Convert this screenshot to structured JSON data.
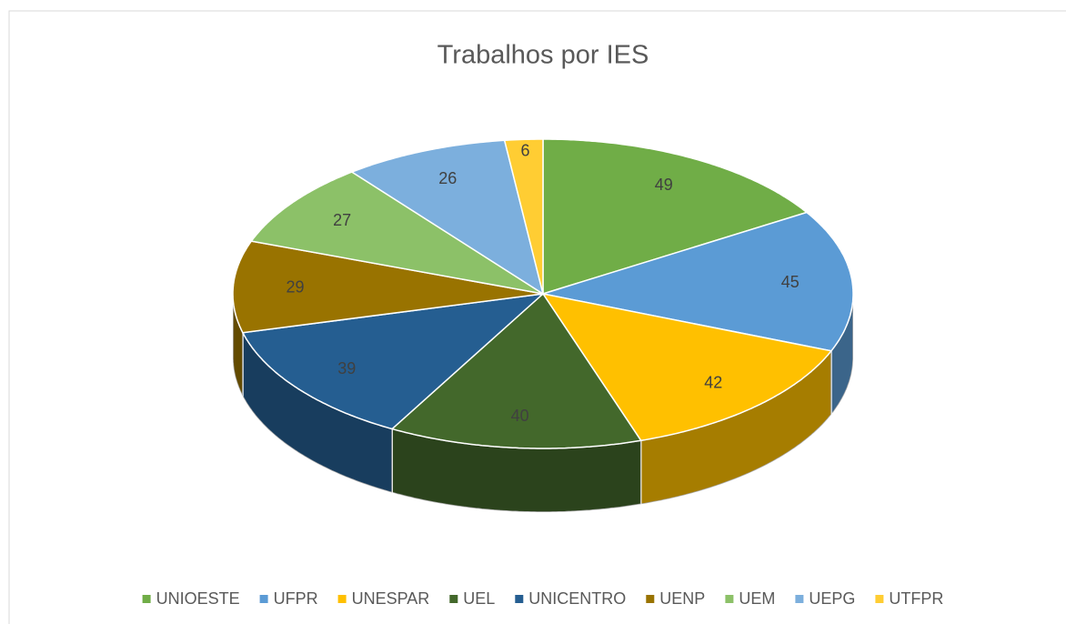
{
  "chart_data": {
    "type": "pie",
    "title": "Trabalhos por IES",
    "categories": [
      "UNIOESTE",
      "UFPR",
      "UNESPAR",
      "UEL",
      "UNICENTRO",
      "UENP",
      "UEM",
      "UEPG",
      "UTFPR"
    ],
    "values": [
      49,
      45,
      42,
      40,
      39,
      29,
      27,
      26,
      6
    ],
    "colors": [
      "#70ad47",
      "#5b9bd5",
      "#ffc000",
      "#43682b",
      "#255e91",
      "#997300",
      "#8cc168",
      "#7cafdd",
      "#ffcd33"
    ],
    "legend": "bottom"
  }
}
